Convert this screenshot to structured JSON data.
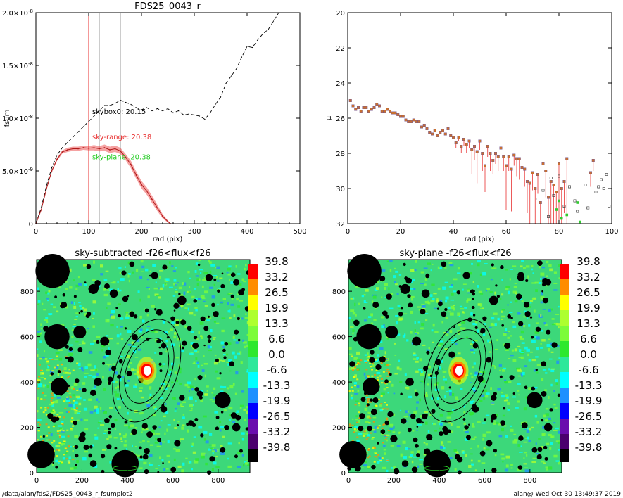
{
  "footer": {
    "path": "/data/alan/fds2/FDS25_0043_r_fsumplot2",
    "stamp": "alan@  Wed Oct 30 13:49:37 2019"
  },
  "chart_data": [
    {
      "id": "fsum",
      "type": "line",
      "title": "FDS25_0043_r",
      "xlabel": "rad (pix)",
      "ylabel": "fsum",
      "xlim": [
        0,
        500
      ],
      "ylim": [
        0,
        2e-08
      ],
      "xticks": [
        "0",
        "100",
        "200",
        "300",
        "400",
        "500"
      ],
      "yticks": [
        {
          "v": 0,
          "m": "0",
          "e": ""
        },
        {
          "v": 5e-09,
          "m": "5.0×10",
          "e": "-9"
        },
        {
          "v": 1e-08,
          "m": "1.0×10",
          "e": "-8"
        },
        {
          "v": 1.5e-08,
          "m": "1.5×10",
          "e": "-8"
        },
        {
          "v": 2e-08,
          "m": "2.0×10",
          "e": "-8"
        }
      ],
      "vlines": [
        {
          "x": 100,
          "color": "#e83030"
        },
        {
          "x": 120,
          "color": "#999999"
        },
        {
          "x": 160,
          "color": "#999999"
        }
      ],
      "annotations": [
        {
          "text": "skybox0: 20.15",
          "x": 112,
          "y": 1.04e-08,
          "color": "#000000"
        },
        {
          "text": "sky-range: 20.38",
          "x": 112,
          "y": 8e-09,
          "color": "#e83030"
        },
        {
          "text": "sky-plane: 20.38",
          "x": 112,
          "y": 6.1e-09,
          "color": "#22cc22"
        }
      ],
      "series": [
        {
          "style": "dashed",
          "color": "#000000",
          "x": [
            0,
            10,
            20,
            30,
            40,
            50,
            60,
            70,
            80,
            90,
            100,
            110,
            120,
            130,
            140,
            150,
            160,
            170,
            180,
            190,
            200,
            210,
            220,
            230,
            240,
            250,
            260,
            270,
            280,
            290,
            300,
            310,
            320,
            330,
            340,
            350,
            360,
            370,
            380,
            390,
            400,
            410,
            420,
            430,
            440,
            450,
            460
          ],
          "y": [
            0,
            1.5e-09,
            3.6e-09,
            5.3e-09,
            6.5e-09,
            7.2e-09,
            7.7e-09,
            8.2e-09,
            8.7e-09,
            9.2e-09,
            9.7e-09,
            1.02e-08,
            1.07e-08,
            1.12e-08,
            1.12e-08,
            1.14e-08,
            1.17e-08,
            1.15e-08,
            1.13e-08,
            1.1e-08,
            1.08e-08,
            1.1e-08,
            1.07e-08,
            1.09e-08,
            1.07e-08,
            1.09e-08,
            1.05e-08,
            1.07e-08,
            1.03e-08,
            1.04e-08,
            1.03e-08,
            1.02e-08,
            9.9e-09,
            1.05e-08,
            1.13e-08,
            1.2e-08,
            1.33e-08,
            1.4e-08,
            1.47e-08,
            1.58e-08,
            1.68e-08,
            1.67e-08,
            1.74e-08,
            1.8e-08,
            1.84e-08,
            1.92e-08,
            2e-08
          ]
        },
        {
          "style": "band",
          "color": "#e83030",
          "x": [
            0,
            10,
            20,
            30,
            40,
            50,
            60,
            70,
            80,
            90,
            100,
            110,
            120,
            130,
            140,
            150,
            160,
            170,
            180,
            190,
            200,
            210,
            220,
            230,
            240,
            250,
            255
          ],
          "y": [
            0,
            1.3e-09,
            3.3e-09,
            5e-09,
            6.1e-09,
            6.8e-09,
            7e-09,
            7.1e-09,
            7.1e-09,
            7.2e-09,
            7.15e-09,
            7.2e-09,
            7.1e-09,
            7.2e-09,
            7e-09,
            7.1e-09,
            6.9e-09,
            6.3e-09,
            5.6e-09,
            4.6e-09,
            3.7e-09,
            3.1e-09,
            2.3e-09,
            1.5e-09,
            7e-10,
            2e-10,
            0
          ],
          "err": [
            0,
            5e-11,
            1e-10,
            1e-10,
            1.5e-10,
            1.5e-10,
            2e-10,
            2e-10,
            2e-10,
            2e-10,
            2e-10,
            2.5e-10,
            2.5e-10,
            3e-10,
            3e-10,
            3e-10,
            3e-10,
            3e-10,
            3.5e-10,
            3.5e-10,
            3.5e-10,
            3.5e-10,
            3.5e-10,
            3e-10,
            2e-10,
            1e-10,
            0
          ]
        }
      ]
    },
    {
      "id": "mu",
      "type": "scatter",
      "title": "",
      "xlabel": "rad (pix)",
      "ylabel": "μ",
      "xlim": [
        0,
        100
      ],
      "ylim": [
        32,
        20
      ],
      "xticks": [
        "0",
        "20",
        "40",
        "60",
        "80",
        "100"
      ],
      "yticks": [
        "20",
        "22",
        "24",
        "26",
        "28",
        "30",
        "32"
      ],
      "series": [
        {
          "marker": "square",
          "color": "#c87030",
          "x": [
            1,
            2,
            3,
            4,
            5,
            6,
            7,
            8,
            9,
            10,
            11,
            12,
            13,
            14,
            15,
            16,
            17,
            18,
            19,
            20,
            21,
            22,
            23,
            24,
            25,
            26,
            27,
            28,
            29,
            30,
            31,
            32,
            33,
            34,
            35,
            36,
            37,
            38,
            39,
            40,
            41,
            42,
            43,
            44,
            45,
            46,
            47,
            48,
            49,
            50,
            51,
            52,
            53,
            54,
            55,
            56,
            57,
            58,
            59,
            60,
            61,
            62,
            63,
            64,
            65,
            66,
            67,
            68,
            69,
            70,
            71,
            72,
            73,
            74,
            75,
            76,
            77,
            78,
            79,
            80,
            81,
            82,
            83,
            92,
            93
          ],
          "y": [
            25.0,
            25.3,
            25.5,
            25.4,
            25.6,
            25.4,
            25.4,
            25.6,
            25.5,
            25.4,
            25.2,
            25.3,
            25.6,
            25.6,
            25.5,
            25.6,
            25.7,
            25.7,
            25.8,
            25.9,
            25.9,
            26.1,
            26.2,
            26.2,
            26.1,
            26.2,
            26.2,
            26.5,
            26.4,
            26.6,
            26.8,
            26.9,
            26.7,
            27.0,
            26.8,
            26.7,
            26.9,
            26.6,
            27.0,
            27.1,
            27.4,
            27.1,
            27.6,
            27.2,
            27.5,
            27.3,
            27.8,
            27.6,
            27.9,
            27.3,
            28.0,
            28.7,
            27.6,
            28.0,
            28.4,
            28.0,
            28.2,
            27.7,
            28.2,
            28.7,
            28.2,
            28.9,
            28.1,
            28.3,
            28.3,
            28.8,
            28.9,
            29.6,
            29.7,
            29.1,
            30.0,
            29.2,
            30.8,
            28.6,
            29.0,
            30.5,
            29.6,
            29.8,
            30.2,
            28.6,
            30.0,
            29.6,
            28.3,
            29.1,
            28.4
          ],
          "err_down": [
            0,
            0,
            0,
            0,
            0,
            0,
            0,
            0,
            0,
            0,
            0,
            0,
            0,
            0,
            0,
            0,
            0,
            0,
            0,
            0,
            0,
            0,
            0,
            0,
            0,
            0,
            0,
            0,
            0,
            0,
            0,
            0,
            0,
            0,
            0,
            0,
            0,
            0,
            0,
            0,
            0.3,
            0.2,
            0.4,
            0.4,
            0.5,
            0.4,
            1.4,
            0.8,
            1.8,
            0.5,
            1.0,
            1.5,
            0.6,
            1.0,
            0.8,
            0.6,
            0.8,
            0.4,
            0.8,
            2.5,
            0.8,
            2.4,
            0.6,
            1.0,
            1.2,
            0.9,
            1.0,
            1.8,
            2.4,
            1.0,
            2.0,
            1.1,
            1.2,
            3.4,
            1.5,
            1.5,
            2.4,
            2.2,
            1.8,
            3.4,
            2.0,
            1.8,
            3.7,
            0.8,
            0.6
          ]
        },
        {
          "marker": "square-open",
          "color": "#444444",
          "x": [
            71,
            74,
            76,
            77,
            78,
            80,
            82,
            84,
            86,
            87,
            88,
            90,
            91,
            94,
            95,
            96,
            97,
            98,
            99
          ],
          "y": [
            30.6,
            30.1,
            31.6,
            29.4,
            30.4,
            29.3,
            31.0,
            29.9,
            30.7,
            31.3,
            30.2,
            29.8,
            31.1,
            30.2,
            29.9,
            29.5,
            30.0,
            29.2,
            31.0
          ],
          "err_down": []
        },
        {
          "marker": "square",
          "color": "#30cc30",
          "x": [
            79,
            80,
            81,
            83,
            87,
            88
          ],
          "y": [
            31.2,
            30.7,
            31.7,
            31.5,
            30.8,
            31.9
          ],
          "err_down": []
        }
      ]
    },
    {
      "id": "img-sub",
      "type": "heatmap",
      "title": "sky-subtracted -f26<flux<f26",
      "xlim": [
        0,
        940
      ],
      "ylim": [
        0,
        940
      ],
      "xticks": [
        "0",
        "200",
        "400",
        "600",
        "800"
      ],
      "yticks": [
        "0",
        "200",
        "400",
        "600",
        "800"
      ],
      "colorbar": {
        "labels": [
          "39.8",
          "33.2",
          "26.5",
          "19.9",
          "13.3",
          "6.6",
          "0.0",
          "-6.6",
          "-13.3",
          "-19.9",
          "-26.5",
          "-33.2",
          "-39.8"
        ],
        "colors": [
          "#ff0000",
          "#ff8c00",
          "#ffff00",
          "#adff2f",
          "#7cfc3a",
          "#2ee82e",
          "#2ee89a",
          "#00ffff",
          "#1e90ff",
          "#0000ff",
          "#6a0dad",
          "#4b006e",
          "#000000"
        ]
      }
    },
    {
      "id": "img-plane",
      "type": "heatmap",
      "title": "sky-plane -f26<flux<f26",
      "xlim": [
        0,
        940
      ],
      "ylim": [
        0,
        940
      ],
      "xticks": [
        "0",
        "200",
        "400",
        "600",
        "800"
      ],
      "yticks": [
        "0",
        "200",
        "400",
        "600",
        "800"
      ],
      "colorbar": {
        "labels": [
          "39.8",
          "33.2",
          "26.5",
          "19.9",
          "13.3",
          "6.6",
          "0.0",
          "-6.6",
          "-13.3",
          "-19.9",
          "-26.5",
          "-33.2",
          "-39.8"
        ],
        "colors": [
          "#ff0000",
          "#ff8c00",
          "#ffff00",
          "#adff2f",
          "#7cfc3a",
          "#2ee82e",
          "#2ee89a",
          "#00ffff",
          "#1e90ff",
          "#0000ff",
          "#6a0dad",
          "#4b006e",
          "#000000"
        ]
      }
    }
  ]
}
